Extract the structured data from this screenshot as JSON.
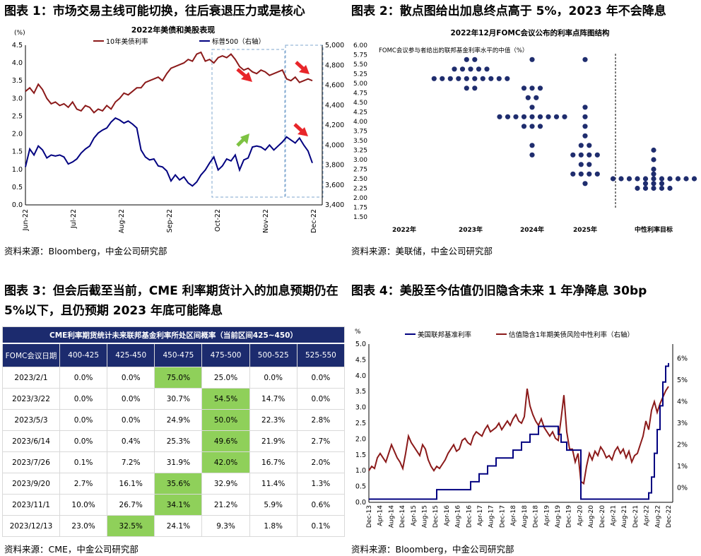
{
  "figures": [
    {
      "title": "图表 1：市场交易主线可能切换，往后衰退压力或是核心",
      "source": "资料来源：Bloomberg，中金公司研究部"
    },
    {
      "title": "图表 2：散点图给出加息终点高于 5%，2023 年不会降息",
      "source": "资料来源：美联储，中金公司研究部"
    },
    {
      "title": "图表 3：但会后截至当前，CME 利率期货计入的加息预期仍在 5%以下，且仍预期 2023 年底可能降息",
      "source": "资料来源：CME，中金公司研究部"
    },
    {
      "title": "图表 4：美股至今估值仍旧隐含未来 1 年净降息 30bp",
      "source": "资料来源：Bloomberg，中金公司研究部"
    }
  ],
  "colors": {
    "dark_red": "#8b1a1a",
    "navy": "#000080",
    "dot_navy": "#1f2d6e",
    "green_hl": "#8fd05a",
    "arrow_red": "#e8262a",
    "arrow_green": "#7dc242",
    "dash_box": "#7fa7cf"
  },
  "chart_data": [
    {
      "type": "line",
      "title": "2022年美债和美股表现",
      "left_unit": "(%)",
      "ylim_left": [
        0.0,
        4.5
      ],
      "ylim_right": [
        3400,
        5000
      ],
      "left_ticks": [
        "0.0",
        "0.5",
        "1.0",
        "1.5",
        "2.0",
        "2.5",
        "3.0",
        "3.5",
        "4.0",
        "4.5"
      ],
      "right_ticks": [
        "3,400",
        "3,600",
        "3,800",
        "4,000",
        "4,200",
        "4,400",
        "4,600",
        "4,800",
        "5,000"
      ],
      "x_ticks": [
        "Jun-22",
        "Jul-22",
        "Aug-22",
        "Sep-22",
        "Oct-22",
        "Nov-22",
        "Dec-22"
      ],
      "series": [
        {
          "name": "10年美债利率",
          "axis": "left",
          "values": [
            3.2,
            3.3,
            3.15,
            3.4,
            3.25,
            3.0,
            2.85,
            2.9,
            2.8,
            2.85,
            2.75,
            2.9,
            2.7,
            2.65,
            2.8,
            2.75,
            2.6,
            2.7,
            2.65,
            2.8,
            2.7,
            2.9,
            3.0,
            3.15,
            3.1,
            3.2,
            3.3,
            3.3,
            3.45,
            3.5,
            3.55,
            3.6,
            3.5,
            3.7,
            3.85,
            3.9,
            3.95,
            4.0,
            4.1,
            4.05,
            4.25,
            4.3,
            4.05,
            4.1,
            4.0,
            4.15,
            4.2,
            4.15,
            4.25,
            4.1,
            3.9,
            3.8,
            3.85,
            3.75,
            3.7,
            3.8,
            3.75,
            3.65,
            3.7,
            3.75,
            3.8,
            3.55,
            3.5,
            3.6,
            3.45,
            3.5,
            3.55,
            3.5
          ]
        },
        {
          "name": "标普500（右轴）",
          "axis": "right",
          "values": [
            3780,
            3960,
            3900,
            3990,
            3950,
            3870,
            3900,
            3890,
            3900,
            3880,
            3810,
            3830,
            3860,
            3920,
            3960,
            3990,
            4070,
            4120,
            4150,
            4170,
            4230,
            4270,
            4250,
            4220,
            4240,
            4210,
            4170,
            3950,
            3880,
            3850,
            3860,
            3790,
            3780,
            3740,
            3640,
            3700,
            3650,
            3680,
            3620,
            3590,
            3630,
            3700,
            3750,
            3820,
            3880,
            3750,
            3790,
            3860,
            3840,
            3900,
            3750,
            3850,
            3870,
            3980,
            3990,
            3980,
            3950,
            4000,
            3950,
            3990,
            4030,
            4080,
            4050,
            4020,
            4070,
            4000,
            3940,
            3820
          ]
        }
      ],
      "annotations": [
        "decline-arrow",
        "rise-arrow",
        "decline-arrow"
      ]
    },
    {
      "type": "scatter",
      "title": "2022年12月FOMC会议公布的利率点阵图结构",
      "subtitle": "FOMC会议参与者给出的联邦基金利率水平的中值（%）",
      "ylim": [
        1.5,
        6.0
      ],
      "y_ticks": [
        "6.00",
        "5.75",
        "5.50",
        "5.25",
        "5.00",
        "4.75",
        "4.50",
        "4.25",
        "4.00",
        "3.75",
        "3.50",
        "3.25",
        "3.00",
        "2.75",
        "2.50",
        "2.25",
        "2.00",
        "1.75",
        "1.50"
      ],
      "categories": [
        "2022年",
        "2023年",
        "2024年",
        "2025年",
        "中性利率目标"
      ],
      "groups": [
        {
          "category": "2023年",
          "dots": [
            {
              "y": 5.625,
              "n": 2
            },
            {
              "y": 5.375,
              "n": 5
            },
            {
              "y": 5.125,
              "n": 10
            },
            {
              "y": 4.875,
              "n": 2
            }
          ]
        },
        {
          "category": "2024年",
          "dots": [
            {
              "y": 5.625,
              "n": 1
            },
            {
              "y": 4.875,
              "n": 3
            },
            {
              "y": 4.625,
              "n": 2
            },
            {
              "y": 4.375,
              "n": 1
            },
            {
              "y": 4.125,
              "n": 9
            },
            {
              "y": 3.875,
              "n": 3
            },
            {
              "y": 3.375,
              "n": 1
            },
            {
              "y": 3.125,
              "n": 1
            }
          ]
        },
        {
          "category": "2025年",
          "dots": [
            {
              "y": 5.625,
              "n": 1
            },
            {
              "y": 4.375,
              "n": 1
            },
            {
              "y": 4.125,
              "n": 1
            },
            {
              "y": 3.875,
              "n": 1
            },
            {
              "y": 3.625,
              "n": 1
            },
            {
              "y": 3.375,
              "n": 2
            },
            {
              "y": 3.125,
              "n": 4
            },
            {
              "y": 2.875,
              "n": 2
            },
            {
              "y": 2.625,
              "n": 4
            },
            {
              "y": 2.375,
              "n": 1
            }
          ]
        },
        {
          "category": "中性利率目标",
          "dots": [
            {
              "y": 3.25,
              "n": 1
            },
            {
              "y": 3.0,
              "n": 1
            },
            {
              "y": 2.75,
              "n": 1
            },
            {
              "y": 2.625,
              "n": 1
            },
            {
              "y": 2.5,
              "n": 11
            },
            {
              "y": 2.375,
              "n": 3
            },
            {
              "y": 2.25,
              "n": 5
            }
          ]
        }
      ]
    },
    {
      "type": "table",
      "title": "CME利率期货统计未来联邦基金利率所处区间概率（当前区间425~450）",
      "columns": [
        "FOMC会议日期",
        "400-425",
        "425-450",
        "450-475",
        "475-500",
        "500-525",
        "525-550"
      ],
      "rows": [
        {
          "cells": [
            "2023/2/1",
            "0.0%",
            "0.0%",
            "75.0%",
            "25.0%",
            "0.0%",
            "0.0%"
          ],
          "hl": 3
        },
        {
          "cells": [
            "2023/3/22",
            "0.0%",
            "0.0%",
            "30.7%",
            "54.5%",
            "14.7%",
            "0.0%"
          ],
          "hl": 4
        },
        {
          "cells": [
            "2023/5/3",
            "0.0%",
            "0.0%",
            "24.9%",
            "50.0%",
            "22.3%",
            "2.8%"
          ],
          "hl": 4
        },
        {
          "cells": [
            "2023/6/14",
            "0.0%",
            "0.4%",
            "25.3%",
            "49.6%",
            "21.9%",
            "2.7%"
          ],
          "hl": 4
        },
        {
          "cells": [
            "2023/7/26",
            "0.1%",
            "7.2%",
            "31.9%",
            "42.0%",
            "16.7%",
            "2.0%"
          ],
          "hl": 4
        },
        {
          "cells": [
            "2023/9/20",
            "2.7%",
            "16.1%",
            "35.6%",
            "32.9%",
            "11.4%",
            "1.3%"
          ],
          "hl": 3
        },
        {
          "cells": [
            "2023/11/1",
            "10.0%",
            "26.7%",
            "34.1%",
            "21.2%",
            "5.9%",
            "0.6%"
          ],
          "hl": 3
        },
        {
          "cells": [
            "2023/12/13",
            "23.0%",
            "32.5%",
            "24.1%",
            "9.3%",
            "1.8%",
            "0.1%"
          ],
          "hl": 2
        }
      ]
    },
    {
      "type": "line",
      "left_unit": "%",
      "ylim_left": [
        0.0,
        5.0
      ],
      "ylim_right": [
        -0.00667,
        0.06667
      ],
      "left_ticks": [
        "0.0",
        "0.5",
        "1.0",
        "1.5",
        "2.0",
        "2.5",
        "3.0",
        "3.5",
        "4.0",
        "4.5",
        "5.0"
      ],
      "right_ticks": [
        "0%",
        "1%",
        "2%",
        "3%",
        "4%",
        "5%",
        "6%"
      ],
      "x_ticks": [
        "Dec-13",
        "Apr-14",
        "Aug-14",
        "Dec-14",
        "Apr-15",
        "Aug-15",
        "Dec-15",
        "Apr-16",
        "Aug-16",
        "Dec-16",
        "Apr-17",
        "Aug-17",
        "Dec-17",
        "Apr-18",
        "Aug-18",
        "Dec-18",
        "Apr-19",
        "Aug-19",
        "Dec-19",
        "Apr-20",
        "Aug-20",
        "Dec-20",
        "Apr-21",
        "Aug-21",
        "Dec-21",
        "Apr-22",
        "Aug-22",
        "Dec-22"
      ],
      "series": [
        {
          "name": "美国联邦基准利率",
          "axis": "left",
          "steps": [
            [
              0,
              0.1
            ],
            [
              24,
              0.4
            ],
            [
              36,
              0.65
            ],
            [
              39,
              0.9
            ],
            [
              42,
              1.15
            ],
            [
              45,
              1.4
            ],
            [
              51,
              1.65
            ],
            [
              54,
              1.9
            ],
            [
              57,
              2.15
            ],
            [
              60,
              2.4
            ],
            [
              67,
              2.15
            ],
            [
              68,
              1.9
            ],
            [
              70,
              1.65
            ],
            [
              75,
              0.1
            ],
            [
              99,
              0.3
            ],
            [
              100,
              0.8
            ],
            [
              101,
              1.55
            ],
            [
              102,
              2.3
            ],
            [
              103,
              3.05
            ],
            [
              104,
              3.8
            ],
            [
              105,
              4.3
            ],
            [
              106,
              4.4
            ]
          ]
        },
        {
          "name": "估值隐含1年期美债风险中性利率（右轴）",
          "axis": "right",
          "values": [
            0.008,
            0.01,
            0.009,
            0.014,
            0.016,
            0.014,
            0.012,
            0.016,
            0.02,
            0.017,
            0.014,
            0.012,
            0.009,
            0.016,
            0.024,
            0.021,
            0.019,
            0.017,
            0.015,
            0.02,
            0.018,
            0.013,
            0.01,
            0.008,
            0.01,
            0.009,
            0.011,
            0.013,
            0.016,
            0.018,
            0.02,
            0.017,
            0.018,
            0.022,
            0.023,
            0.021,
            0.02,
            0.024,
            0.026,
            0.025,
            0.024,
            0.027,
            0.029,
            0.026,
            0.027,
            0.028,
            0.03,
            0.027,
            0.029,
            0.031,
            0.029,
            0.032,
            0.034,
            0.031,
            0.03,
            0.033,
            0.046,
            0.038,
            0.034,
            0.031,
            0.029,
            0.032,
            0.028,
            0.026,
            0.024,
            0.026,
            0.023,
            0.022,
            0.032,
            0.043,
            0.026,
            0.018,
            0.018,
            0.012,
            0.016,
            0.003,
            0.002,
            0.01,
            0.016,
            0.013,
            0.017,
            0.015,
            0.019,
            0.017,
            0.014,
            0.015,
            0.013,
            0.017,
            0.019,
            0.016,
            0.018,
            0.014,
            0.017,
            0.012,
            0.015,
            0.016,
            0.02,
            0.024,
            0.031,
            0.027,
            0.036,
            0.04,
            0.035,
            0.039,
            0.042,
            0.045,
            0.047
          ]
        }
      ]
    }
  ]
}
